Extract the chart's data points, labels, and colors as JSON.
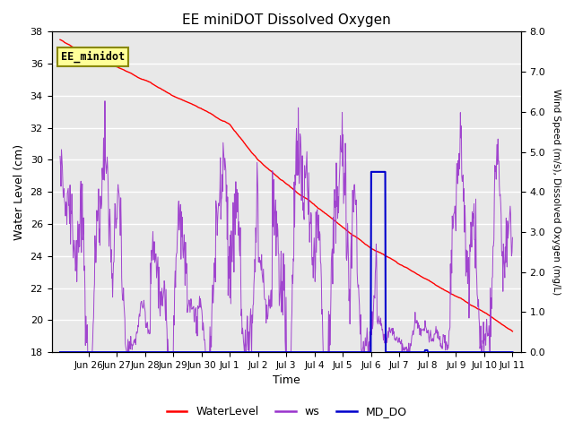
{
  "title": "EE miniDOT Dissolved Oxygen",
  "xlabel": "Time",
  "ylabel_left": "Water Level (cm)",
  "ylabel_right": "Wind Speed (m/s), Dissolved Oxygen (mg/L)",
  "legend_label": "EE_minidot",
  "y_left_min": 18,
  "y_left_max": 38,
  "y_right_min": 0.0,
  "y_right_max": 8.0,
  "x_min": -0.3,
  "x_max": 16.3,
  "bg_color": "#e8e8e8",
  "wl_color": "#ff0000",
  "ws_color": "#9933cc",
  "do_color": "#0000cc",
  "tick_positions": [
    1,
    2,
    3,
    4,
    5,
    6,
    7,
    8,
    9,
    10,
    11,
    12,
    13,
    14,
    15,
    16
  ],
  "tick_labels": [
    "Jun 26",
    "Jun 27",
    "Jun 28",
    "Jun 29",
    "Jun 30",
    "Jul 1",
    "Jul 2",
    "Jul 3",
    "Jul 4",
    "Jul 5",
    "Jul 6",
    "Jul 7",
    "Jul 8",
    "Jul 9",
    "Jul 10",
    "Jul 11"
  ],
  "left_yticks": [
    18,
    20,
    22,
    24,
    26,
    28,
    30,
    32,
    34,
    36,
    38
  ],
  "right_yticks": [
    0.0,
    1.0,
    2.0,
    3.0,
    4.0,
    5.0,
    6.0,
    7.0,
    8.0
  ]
}
